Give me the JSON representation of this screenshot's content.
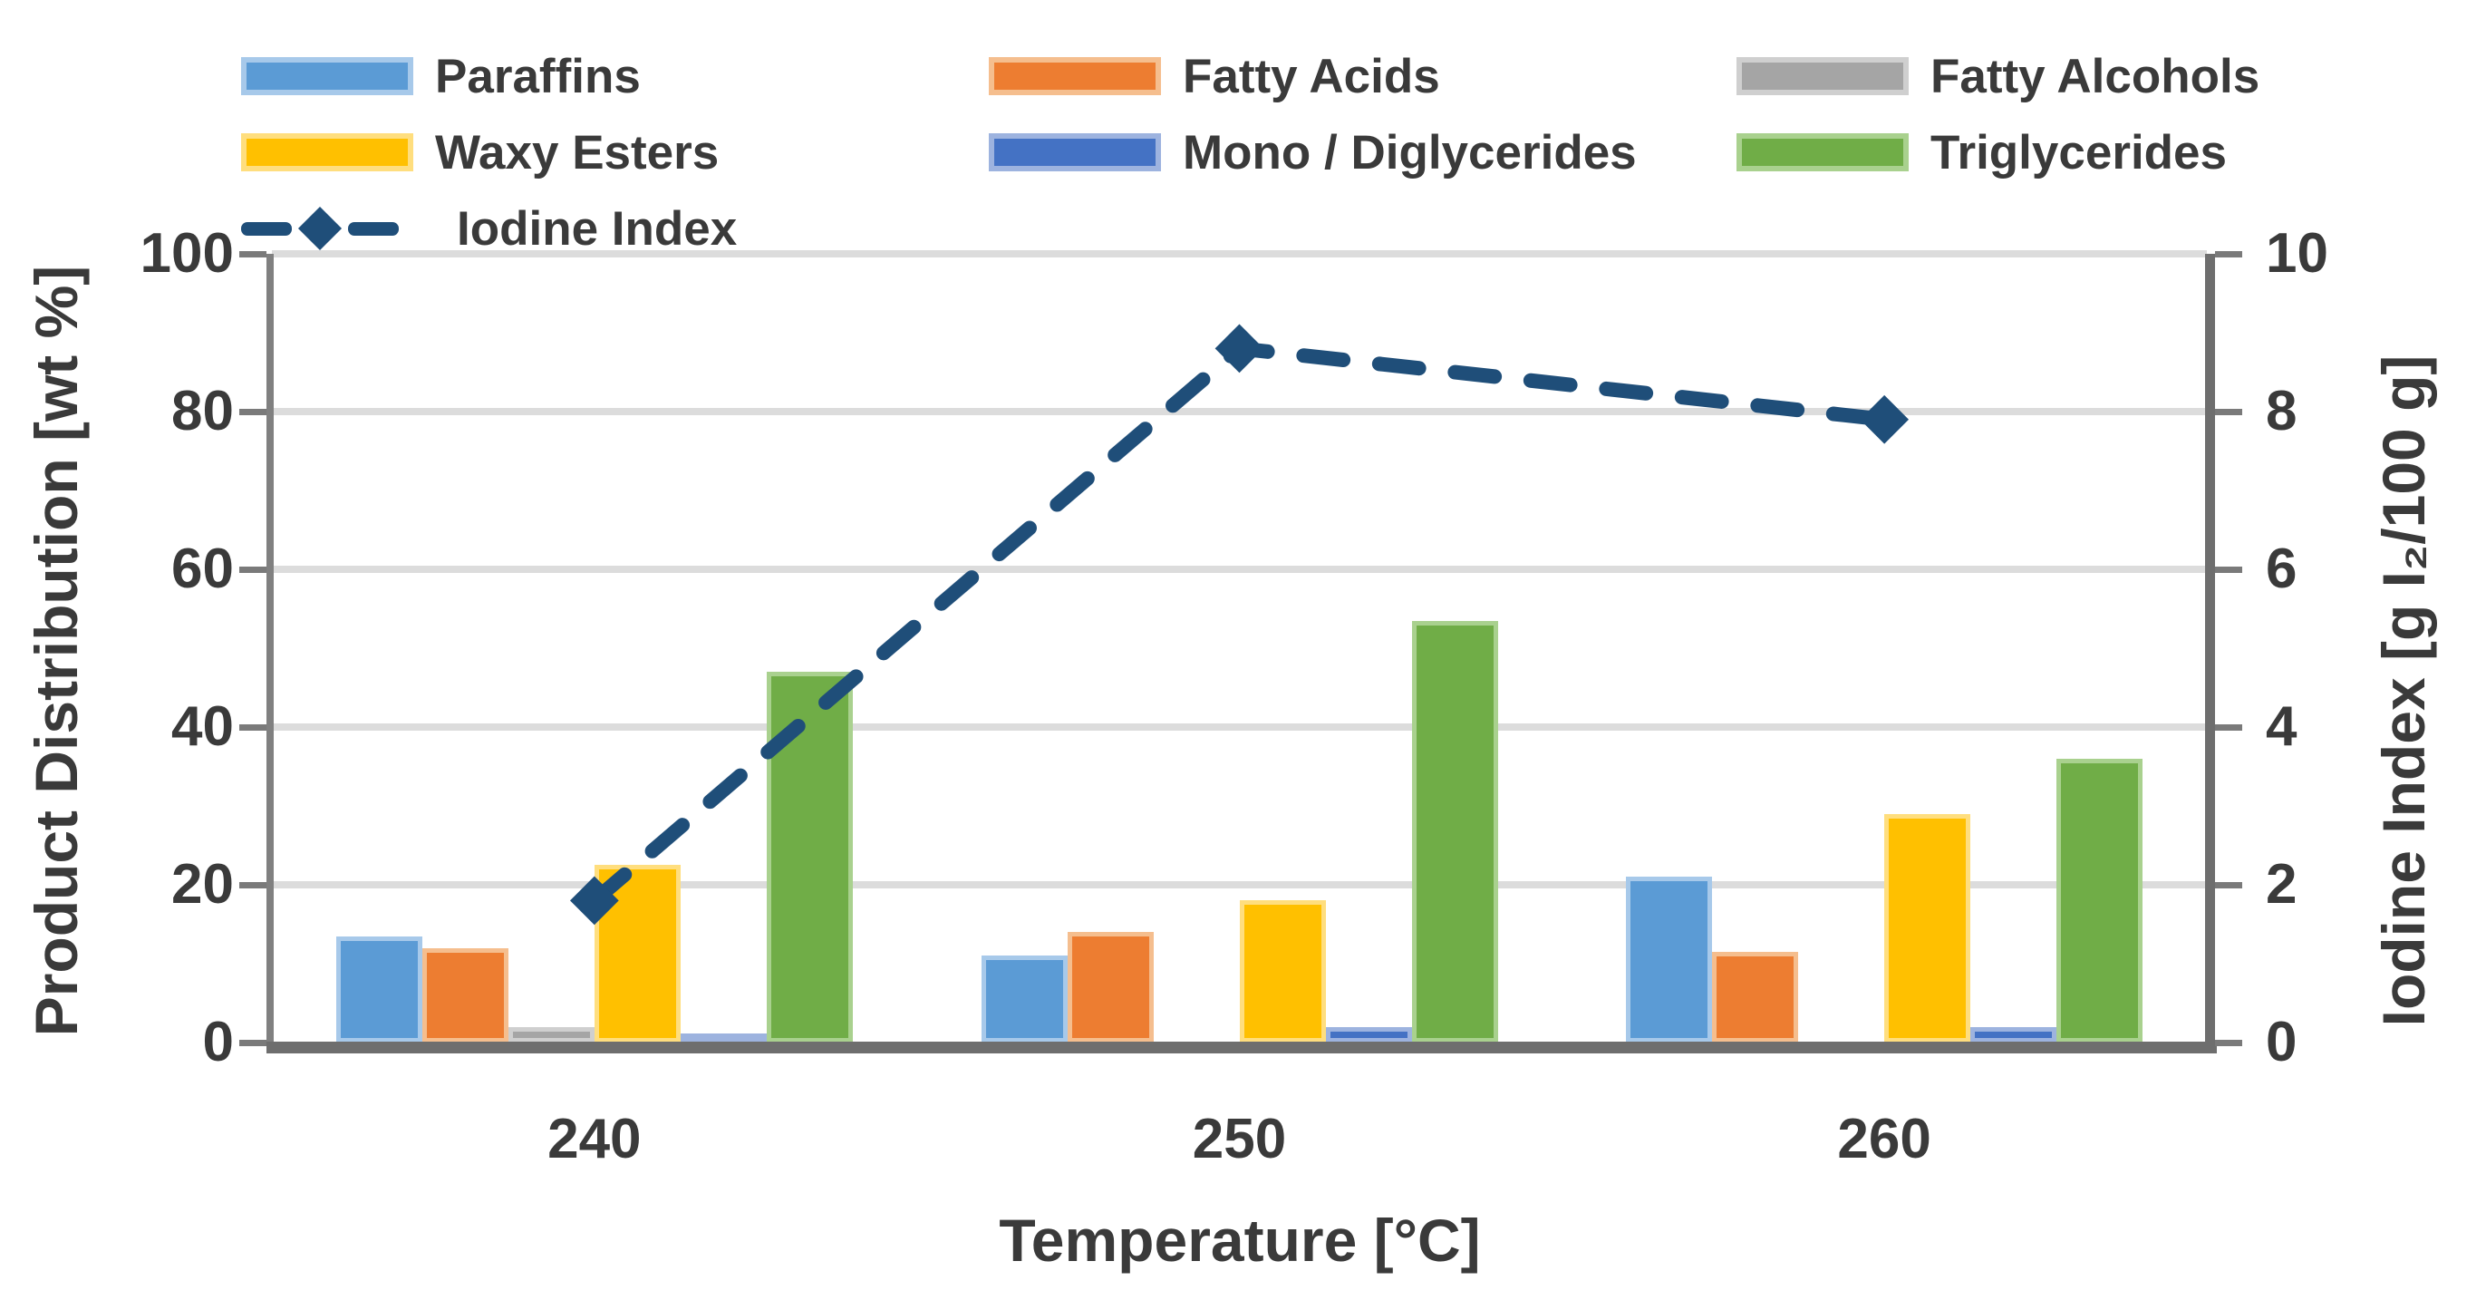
{
  "chart_data": {
    "type": "bar+line combo",
    "categories": [
      "240",
      "250",
      "260"
    ],
    "xlabel": "Temperature [°C]",
    "ylabel_left": "Product Distribution [wt %]",
    "ylabel_right": "Iodine Index [g I₂/100 g]",
    "ylim_left": [
      0,
      100
    ],
    "left_tick_labels": [
      "0",
      "20",
      "40",
      "60",
      "80",
      "100"
    ],
    "ylim_right": [
      0,
      10
    ],
    "right_tick_labels": [
      "0",
      "2",
      "4",
      "6",
      "8",
      "10"
    ],
    "grid": "horizontal gridlines on",
    "legend_position": "top",
    "bar_series": [
      {
        "name": "Paraffins",
        "color": "#5B9BD5",
        "border_color": "#A7C9EA",
        "values": [
          13.5,
          11,
          21
        ]
      },
      {
        "name": "Fatty Acids",
        "color": "#ED7D31",
        "border_color": "#F5BE8E",
        "values": [
          12,
          14,
          11.5
        ]
      },
      {
        "name": "Fatty Alcohols",
        "color": "#A5A5A5",
        "border_color": "#CFCFCF",
        "values": [
          2,
          0,
          0
        ]
      },
      {
        "name": "Waxy Esters",
        "color": "#FFC000",
        "border_color": "#FFDE7E",
        "values": [
          22.5,
          18,
          29
        ]
      },
      {
        "name": "Mono / Diglycerides",
        "color": "#4472C4",
        "border_color": "#9DB3DF",
        "values": [
          1.2,
          2,
          2
        ]
      },
      {
        "name": "Triglycerides",
        "color": "#70AD47",
        "border_color": "#A9D18E",
        "values": [
          47,
          53.5,
          36
        ]
      }
    ],
    "line_series": {
      "name": "Iodine Index",
      "color": "#1F4E79",
      "axis": "right",
      "style": "dashed",
      "marker": "diamond",
      "values": [
        1.8,
        8.8,
        7.9
      ]
    }
  },
  "colors": {
    "gridline": "#dcdcdc",
    "axis_line": "#6e6e6e",
    "text": "#3a3a3a"
  }
}
